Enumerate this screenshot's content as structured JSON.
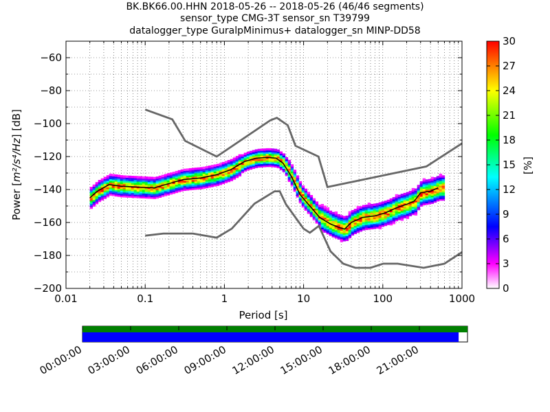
{
  "titles": [
    "BK.BK66.00.HHN   2018-05-26 -- 2018-05-26  (46/46 segments)",
    "sensor_type CMG-3T sensor_sn T39799",
    "datalogger_type GuralpMinimus+ datalogger_sn MINP-DD58"
  ],
  "chart_data": {
    "type": "heatmap",
    "xlabel": "Period [s]",
    "ylabel_prefix": "Power [",
    "ylabel_math": "m²/s⁴/Hz",
    "ylabel_suffix": "] [dB]",
    "xscale": "log",
    "xlim": [
      0.01,
      1000
    ],
    "ylim": [
      -200,
      -50
    ],
    "xticks": [
      0.01,
      0.1,
      1,
      10,
      100,
      1000
    ],
    "xtick_labels": [
      "0.01",
      "0.1",
      "1",
      "10",
      "100",
      "1000"
    ],
    "yticks": [
      -60,
      -80,
      -100,
      -120,
      -140,
      -160,
      -180,
      -200
    ],
    "ytick_labels": [
      "−60",
      "−80",
      "−100",
      "−120",
      "−140",
      "−160",
      "−180",
      "−200"
    ],
    "grid": true,
    "colorbar": {
      "label": "[%]",
      "range": [
        0,
        30
      ],
      "ticks": [
        0,
        3,
        6,
        9,
        12,
        15,
        18,
        21,
        24,
        27,
        30
      ],
      "colormap": [
        "#ffffff",
        "#ff00ff",
        "#0000ff",
        "#00ffff",
        "#00ff00",
        "#ffff00",
        "#ff0000"
      ]
    },
    "nhnm": {
      "period": [
        0.1,
        0.22,
        0.32,
        0.8,
        3.8,
        4.6,
        6.3,
        7.9,
        15.4,
        20,
        354.8,
        1000
      ],
      "power": [
        -91.5,
        -97.4,
        -110.5,
        -120,
        -98,
        -96.5,
        -101,
        -113.5,
        -120,
        -138.5,
        -126,
        -112
      ]
    },
    "nlnm": {
      "period": [
        0.1,
        0.17,
        0.4,
        0.8,
        1.24,
        2.4,
        4.3,
        5,
        6,
        10,
        12,
        15.6,
        21.9,
        31.6,
        45,
        70,
        101,
        154,
        328,
        600,
        1000
      ],
      "power": [
        -168,
        -166.7,
        -166.7,
        -169.2,
        -163.7,
        -148.6,
        -141.1,
        -141.1,
        -149,
        -163.8,
        -166.2,
        -162.1,
        -177.5,
        -185,
        -187.5,
        -187.5,
        -185,
        -185,
        -187.5,
        -185,
        -178
      ]
    },
    "mode_line": {
      "period": [
        0.02,
        0.025,
        0.035,
        0.05,
        0.08,
        0.13,
        0.18,
        0.3,
        0.5,
        0.8,
        1.2,
        1.8,
        2.5,
        3.5,
        4.5,
        5.5,
        7,
        9,
        12,
        16,
        22,
        28,
        33,
        40,
        55,
        80,
        110,
        150,
        200,
        250,
        300,
        400,
        500
      ],
      "power": [
        -145,
        -141,
        -137,
        -138,
        -138.5,
        -139,
        -137,
        -134,
        -133,
        -131,
        -128,
        -123,
        -121,
        -120.5,
        -121,
        -124,
        -132,
        -143,
        -150,
        -157,
        -161,
        -163,
        -164,
        -160,
        -157,
        -156,
        -154,
        -151,
        -149,
        -147,
        -142,
        -141,
        -139
      ]
    },
    "segment_time_ticks": [
      "00:00:00",
      "03:00:00",
      "06:00:00",
      "09:00:00",
      "12:00:00",
      "15:00:00",
      "18:00:00",
      "21:00:00"
    ],
    "segment_coverage": {
      "upper_bar_color": "#008000",
      "lower_bar_color": "#0000ff",
      "upper_fraction": 1.0,
      "lower_fraction": 0.977
    }
  }
}
